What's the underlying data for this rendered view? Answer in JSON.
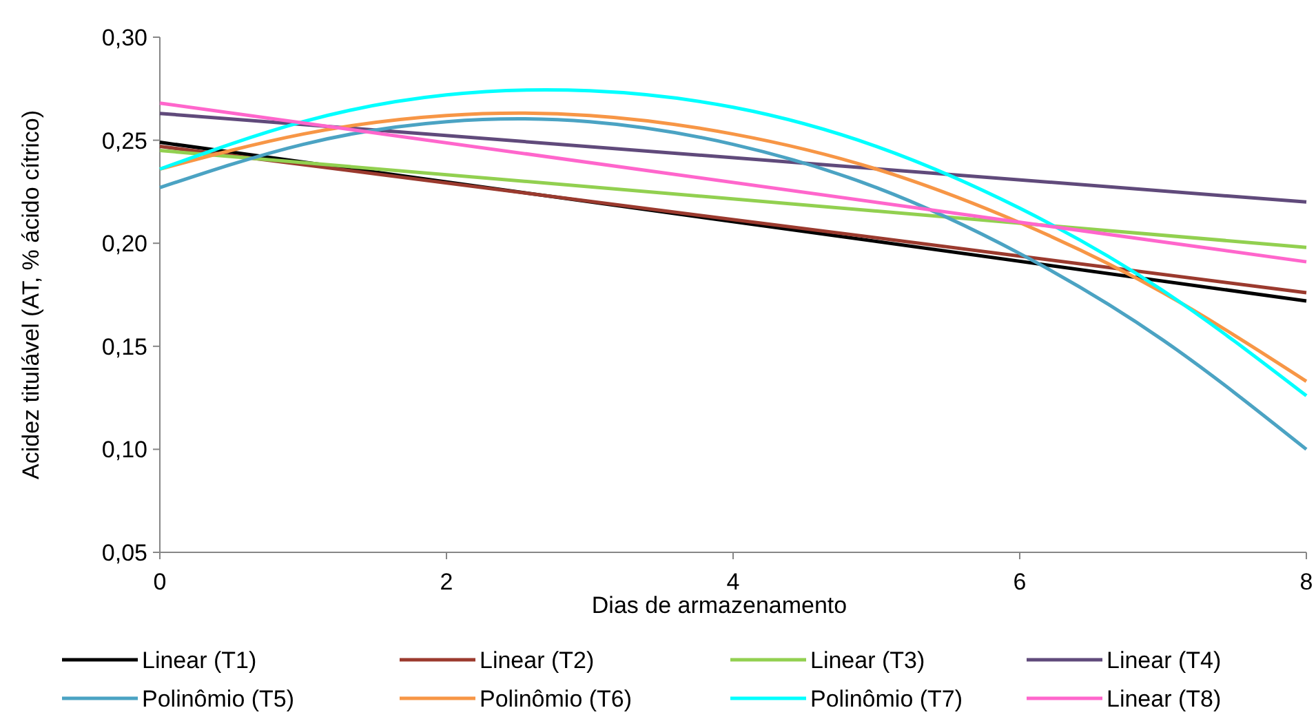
{
  "chart_data": {
    "type": "line",
    "xlabel": "Dias de armazenamento",
    "ylabel": "Acidez titulável (AT, % ácido cítrico)",
    "xlim": [
      0,
      8
    ],
    "xticks": [
      0,
      2,
      4,
      6,
      8
    ],
    "ylim": [
      0.05,
      0.3
    ],
    "yticks": [
      {
        "value": 0.05,
        "label": "0,05"
      },
      {
        "value": 0.1,
        "label": "0,10"
      },
      {
        "value": 0.15,
        "label": "0,15"
      },
      {
        "value": 0.2,
        "label": "0,20"
      },
      {
        "value": 0.25,
        "label": "0,25"
      },
      {
        "value": 0.3,
        "label": "0,30"
      }
    ],
    "grid": false,
    "legend": "bottom",
    "marker": "none",
    "line_style": "solid",
    "series": [
      {
        "name": "Linear (T1)",
        "color": "#000000",
        "x": [
          0,
          8
        ],
        "values": [
          0.249,
          0.172
        ]
      },
      {
        "name": "Linear (T2)",
        "color": "#9b3a2e",
        "x": [
          0,
          8
        ],
        "values": [
          0.247,
          0.176
        ]
      },
      {
        "name": "Linear (T3)",
        "color": "#92d050",
        "x": [
          0,
          8
        ],
        "values": [
          0.245,
          0.198
        ]
      },
      {
        "name": "Linear (T4)",
        "color": "#604a7b",
        "x": [
          0,
          8
        ],
        "values": [
          0.263,
          0.22
        ]
      },
      {
        "name": "Polinômio (T5)",
        "color": "#4ba3c3",
        "x": [
          0,
          1,
          2,
          3,
          4,
          5,
          6,
          7,
          8
        ],
        "values": [
          0.227,
          0.248,
          0.259,
          0.259,
          0.248,
          0.227,
          0.195,
          0.153,
          0.1
        ]
      },
      {
        "name": "Polinômio (T6)",
        "color": "#f79646",
        "x": [
          0,
          1,
          2,
          3,
          4,
          5,
          6,
          7,
          8
        ],
        "values": [
          0.236,
          0.253,
          0.262,
          0.262,
          0.253,
          0.236,
          0.21,
          0.176,
          0.133
        ]
      },
      {
        "name": "Polinômio (T7)",
        "color": "#00ffff",
        "x": [
          0,
          1,
          2,
          3,
          4,
          5,
          6,
          7,
          8
        ],
        "values": [
          0.236,
          0.259,
          0.272,
          0.274,
          0.266,
          0.247,
          0.217,
          0.177,
          0.126
        ]
      },
      {
        "name": "Linear (T8)",
        "color": "#ff66cc",
        "x": [
          0,
          8
        ],
        "values": [
          0.268,
          0.191
        ]
      }
    ]
  }
}
